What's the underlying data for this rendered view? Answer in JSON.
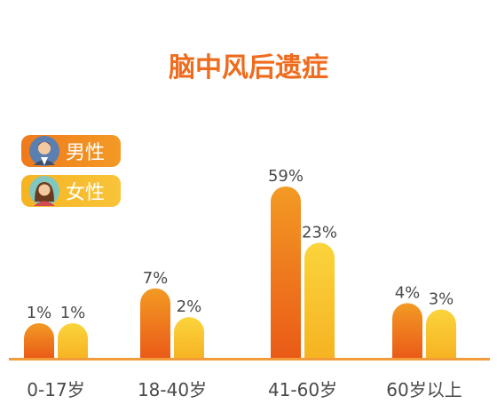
{
  "colors": {
    "male_top": "#f39a24",
    "male_bottom": "#ea5a17",
    "female_top": "#fbd43c",
    "female_bottom": "#f6b322",
    "title": "#ef6b1d",
    "axis": "#f29b3b",
    "label": "#4a4a4a"
  },
  "chart_data": {
    "type": "bar",
    "title": "脑中风后遗症",
    "categories": [
      "0-17岁",
      "18-40岁",
      "41-60岁",
      "60岁以上"
    ],
    "series": [
      {
        "name": "男性",
        "values": [
          1,
          7,
          59,
          4
        ],
        "labels": [
          "1%",
          "7%",
          "59%",
          "4%"
        ]
      },
      {
        "name": "女性",
        "values": [
          1,
          2,
          23,
          3
        ],
        "labels": [
          "1%",
          "2%",
          "23%",
          "3%"
        ]
      }
    ],
    "legend": "top-left",
    "grid": false
  }
}
